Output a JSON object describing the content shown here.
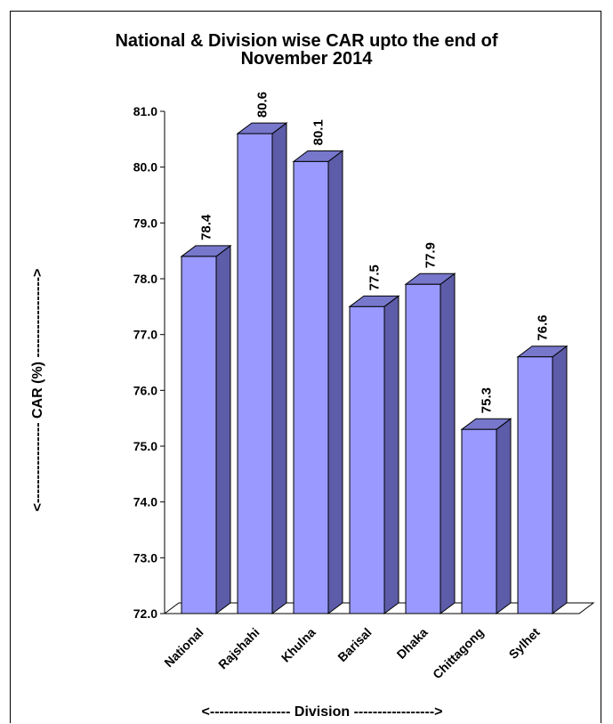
{
  "chart_data": {
    "type": "bar",
    "title_line1": "National & Division wise CAR upto the end of",
    "title_line2": "November 2014",
    "xlabel": "Division",
    "xlabel_display": "<----------------- Division ----------------->",
    "ylabel": "CAR (%)",
    "ylabel_display": "<----------------- CAR (%) ----------------->",
    "ylim": [
      72.0,
      81.0
    ],
    "yticks": [
      "72.0",
      "73.0",
      "74.0",
      "75.0",
      "76.0",
      "77.0",
      "78.0",
      "79.0",
      "80.0",
      "81.0"
    ],
    "categories": [
      "National",
      "Rajshahi",
      "Khulna",
      "Barisal",
      "Dhaka",
      "Chittagong",
      "Sylhet"
    ],
    "values": [
      78.4,
      80.6,
      80.1,
      77.5,
      77.9,
      75.3,
      76.6
    ],
    "data_labels": [
      "78.4",
      "80.6",
      "80.1",
      "77.5",
      "77.9",
      "75.3",
      "76.6"
    ],
    "bar_color": "#9999FF",
    "bar_side_color": "#5C5CA8",
    "bar_top_color": "#7777CC",
    "grid": false,
    "legend": "none"
  }
}
